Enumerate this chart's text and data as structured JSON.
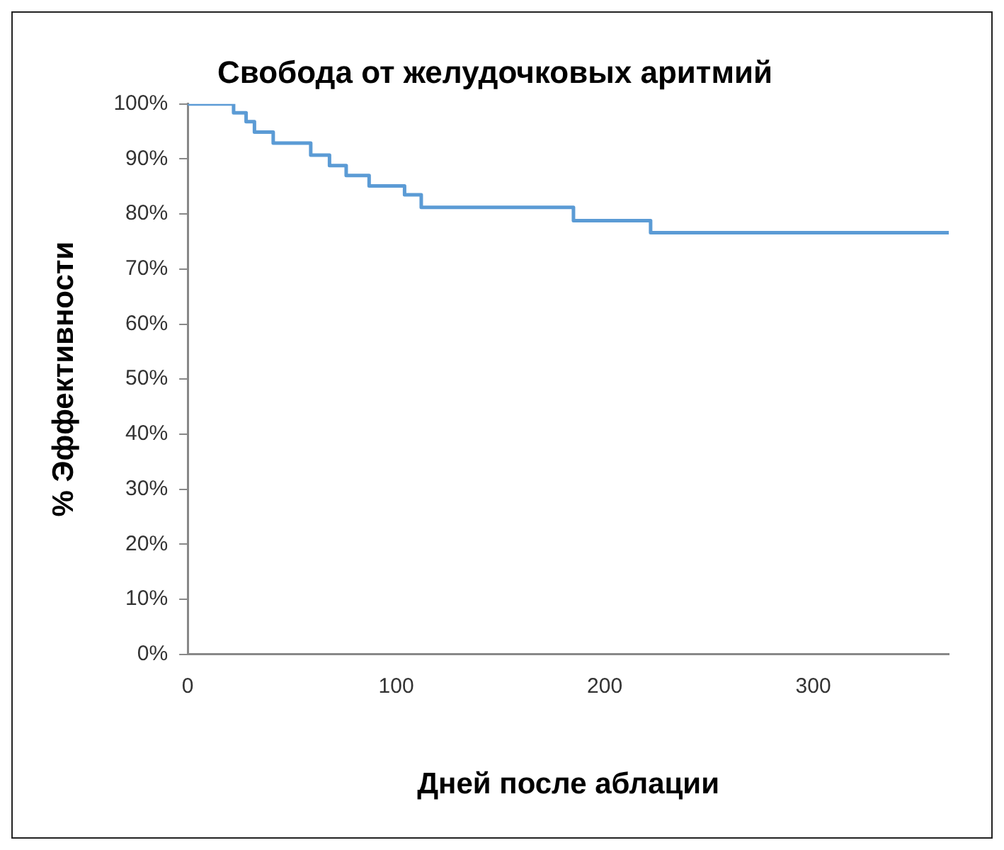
{
  "chart_data": {
    "type": "step",
    "title": "Свобода от желудочковых аритмий",
    "xlabel": "Дней после аблации",
    "ylabel": "% Эффективности",
    "x": [
      0,
      22,
      28,
      32,
      41,
      59,
      68,
      76,
      87,
      104,
      112,
      185,
      222,
      365
    ],
    "series": [
      {
        "color": "#5b9bd5",
        "values": [
          100,
          98.4,
          96.8,
          94.9,
          92.9,
          90.7,
          88.8,
          87.0,
          85.1,
          83.5,
          81.2,
          78.8,
          76.6,
          76.6
        ]
      }
    ],
    "xlim": [
      0,
      365
    ],
    "xticks": [
      0,
      100,
      200,
      300
    ],
    "ylim": [
      0,
      100
    ],
    "yticks": [
      {
        "value": 0,
        "label": "0%"
      },
      {
        "value": 10,
        "label": "10%"
      },
      {
        "value": 20,
        "label": "20%"
      },
      {
        "value": 30,
        "label": "30%"
      },
      {
        "value": 40,
        "label": "40%"
      },
      {
        "value": 50,
        "label": "50%"
      },
      {
        "value": 60,
        "label": "60%"
      },
      {
        "value": 70,
        "label": "70%"
      },
      {
        "value": 80,
        "label": "80%"
      },
      {
        "value": 90,
        "label": "90%"
      },
      {
        "value": 100,
        "label": "100%"
      }
    ],
    "grid": false,
    "legend": false,
    "marker": "none",
    "line_style": "solid"
  }
}
